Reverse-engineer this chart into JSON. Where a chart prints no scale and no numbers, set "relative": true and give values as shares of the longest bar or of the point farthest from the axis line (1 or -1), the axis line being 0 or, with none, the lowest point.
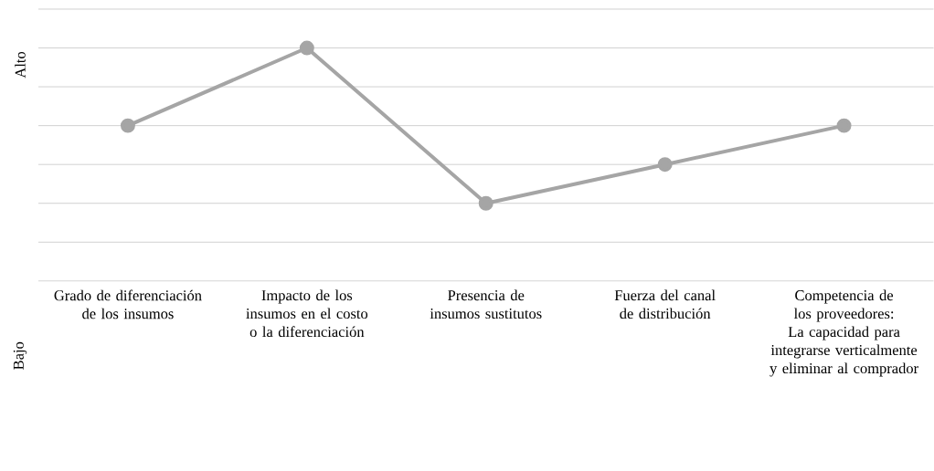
{
  "chart_data": {
    "type": "line",
    "relative": true,
    "ylabel": "Alto",
    "annotations": [
      "Bajo"
    ],
    "categories": [
      "Grado de diferenciación de los insumos",
      "Impacto de los insumos en el costo o la diferenciación",
      "Presencia de insumos sustitutos",
      "Fuerza del canal de distribución",
      "Competencia de los proveedores: La capacidad para integrarse verticalmente y eliminar al comprador"
    ],
    "values": [
      0.6667,
      1,
      0.3333,
      0.5,
      0.6667
    ],
    "color": "#a5a5a5",
    "marker": "circle",
    "line_style": "solid",
    "grid": "y"
  }
}
